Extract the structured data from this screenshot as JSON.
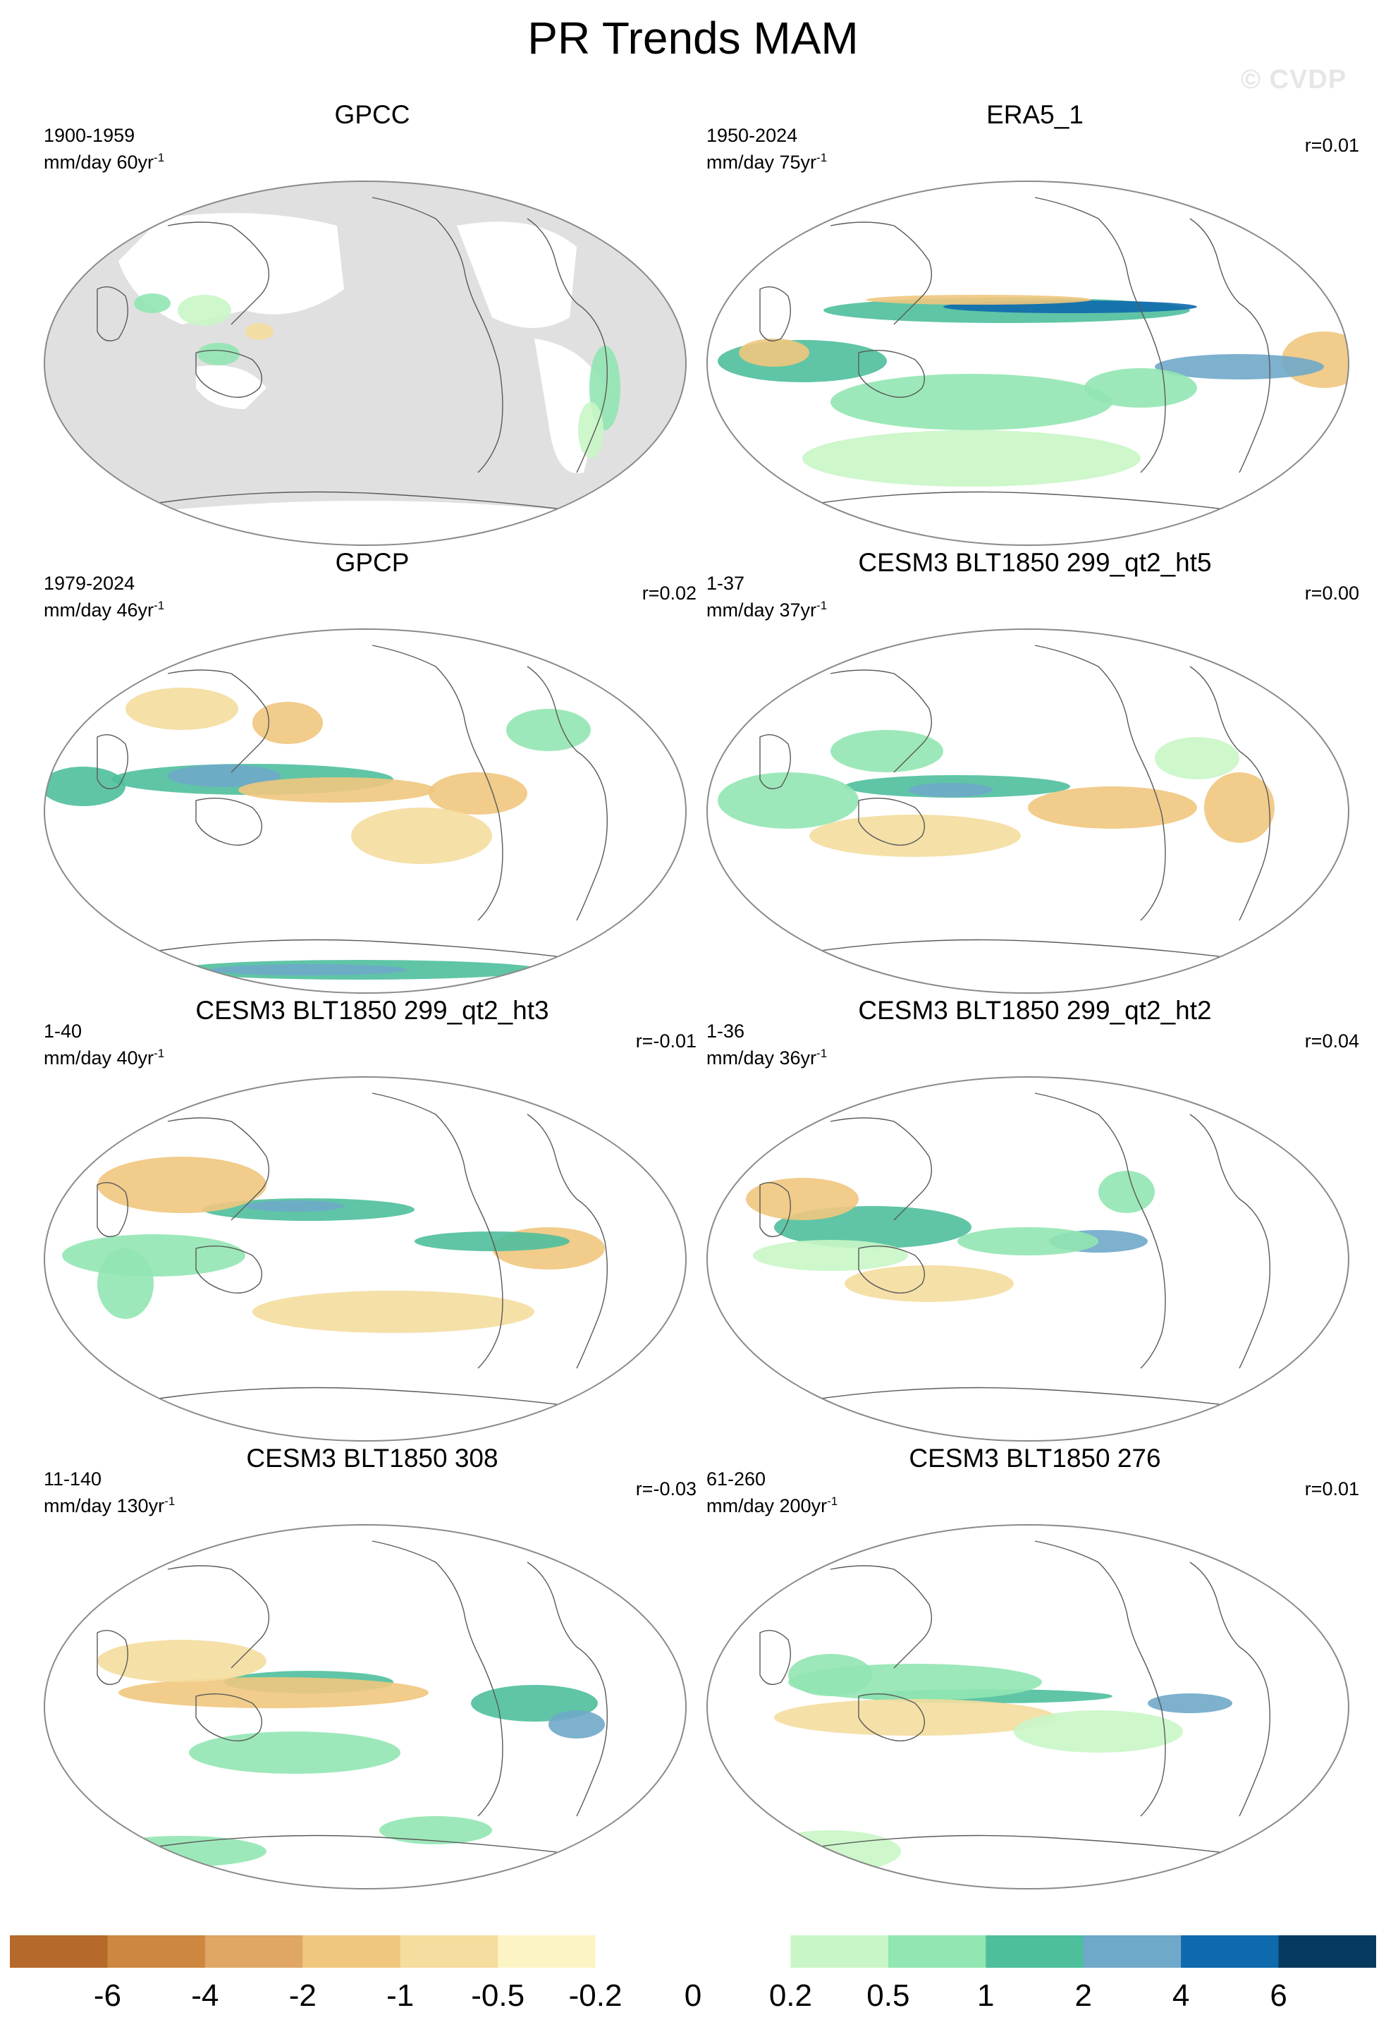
{
  "title": "PR Trends MAM",
  "watermark": "© CVDP",
  "panels": [
    {
      "title": "GPCC",
      "period": "1900-1959",
      "units_base": "mm/day 60yr",
      "units_exp": "-1",
      "r": "",
      "masked_ocean": true
    },
    {
      "title": "ERA5_1",
      "period": "1950-2024",
      "units_base": "mm/day 75yr",
      "units_exp": "-1",
      "r": "r=0.01",
      "masked_ocean": false
    },
    {
      "title": "GPCP",
      "period": "1979-2024",
      "units_base": "mm/day 46yr",
      "units_exp": "-1",
      "r": "r=0.02",
      "masked_ocean": false
    },
    {
      "title": "CESM3 BLT1850 299_qt2_ht5",
      "period": "1-37",
      "units_base": "mm/day 37yr",
      "units_exp": "-1",
      "r": "r=0.00",
      "masked_ocean": false
    },
    {
      "title": "CESM3 BLT1850 299_qt2_ht3",
      "period": "1-40",
      "units_base": "mm/day 40yr",
      "units_exp": "-1",
      "r": "r=-0.01",
      "masked_ocean": false
    },
    {
      "title": "CESM3 BLT1850 299_qt2_ht2",
      "period": "1-36",
      "units_base": "mm/day 36yr",
      "units_exp": "-1",
      "r": "r=0.04",
      "masked_ocean": false
    },
    {
      "title": "CESM3 BLT1850 308",
      "period": "11-140",
      "units_base": "mm/day 130yr",
      "units_exp": "-1",
      "r": "r=-0.03",
      "masked_ocean": false
    },
    {
      "title": "CESM3 BLT1850 276",
      "period": "61-260",
      "units_base": "mm/day 200yr",
      "units_exp": "-1",
      "r": "r=0.01",
      "masked_ocean": false
    }
  ],
  "colorbar": {
    "labels": [
      "-6",
      "-4",
      "-2",
      "-1",
      "-0.5",
      "-0.2",
      "0",
      "0.2",
      "0.5",
      "1",
      "2",
      "4",
      "6"
    ],
    "colors": [
      "#b5692a",
      "#cd8741",
      "#dfa665",
      "#f0c77e",
      "#f4dd9f",
      "#fdf4c6",
      "#ffffff",
      "#ffffff",
      "#c9f6c6",
      "#92e6b2",
      "#4ebf9c",
      "#6fa8c9",
      "#0f69ad",
      "#063a5f"
    ]
  },
  "colors": {
    "land_mask": "#e0e0e0",
    "coast": "#5a5a5a",
    "border": "#8a8a8a"
  }
}
